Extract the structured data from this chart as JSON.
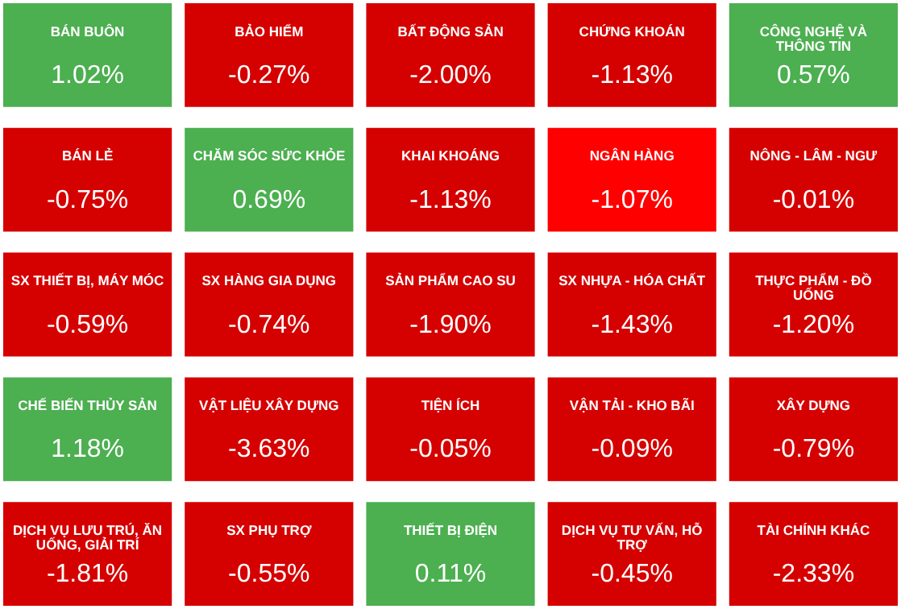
{
  "chart_data": {
    "type": "other",
    "categories": [
      "BÁN BUÔN",
      "BẢO HIỂM",
      "BẤT ĐỘNG SẢN",
      "CHỨNG KHOÁN",
      "CÔNG NGHỆ VÀ THÔNG TIN",
      "BÁN LẺ",
      "CHĂM SÓC SỨC KHỎE",
      "KHAI KHOÁNG",
      "NGÂN HÀNG",
      "NÔNG - LÂM - NGƯ",
      "SX THIẾT BỊ, MÁY MÓC",
      "SX HÀNG GIA DỤNG",
      "SẢN PHẨM CAO SU",
      "SX NHỰA - HÓA CHẤT",
      "THỰC PHẨM - ĐỒ UỐNG",
      "CHẾ BIẾN THỦY SẢN",
      "VẬT LIỆU XÂY DỰNG",
      "TIỆN ÍCH",
      "VẬN TẢI - KHO BÃI",
      "XÂY DỰNG",
      "DỊCH VỤ LƯU TRÚ, ĂN UỐNG, GIẢI TRÍ",
      "SX PHỤ TRỢ",
      "THIẾT BỊ ĐIỆN",
      "DỊCH VỤ TƯ VẤN, HỖ TRỢ",
      "TÀI CHÍNH KHÁC"
    ],
    "values": [
      1.02,
      -0.27,
      -2.0,
      -1.13,
      0.57,
      -0.75,
      0.69,
      -1.13,
      -1.07,
      -0.01,
      -0.59,
      -0.74,
      -1.9,
      -1.43,
      -1.2,
      1.18,
      -3.63,
      -0.05,
      -0.09,
      -0.79,
      -1.81,
      -0.55,
      0.11,
      -0.45,
      -2.33
    ],
    "value_labels": [
      "1.02%",
      "-0.27%",
      "-2.00%",
      "-1.13%",
      "0.57%",
      "-0.75%",
      "0.69%",
      "-1.13%",
      "-1.07%",
      "-0.01%",
      "-0.59%",
      "-0.74%",
      "-1.90%",
      "-1.43%",
      "-1.20%",
      "1.18%",
      "-3.63%",
      "-0.05%",
      "-0.09%",
      "-0.79%",
      "-1.81%",
      "-0.55%",
      "0.11%",
      "-0.45%",
      "-2.33%"
    ],
    "colors": [
      "#4caf50",
      "#d50000",
      "#d50000",
      "#d50000",
      "#4caf50",
      "#d50000",
      "#4caf50",
      "#d50000",
      "#ff0000",
      "#d50000",
      "#d50000",
      "#d50000",
      "#d50000",
      "#d50000",
      "#d50000",
      "#4caf50",
      "#d50000",
      "#d50000",
      "#d50000",
      "#d50000",
      "#d50000",
      "#d50000",
      "#4caf50",
      "#d50000",
      "#d50000"
    ]
  }
}
